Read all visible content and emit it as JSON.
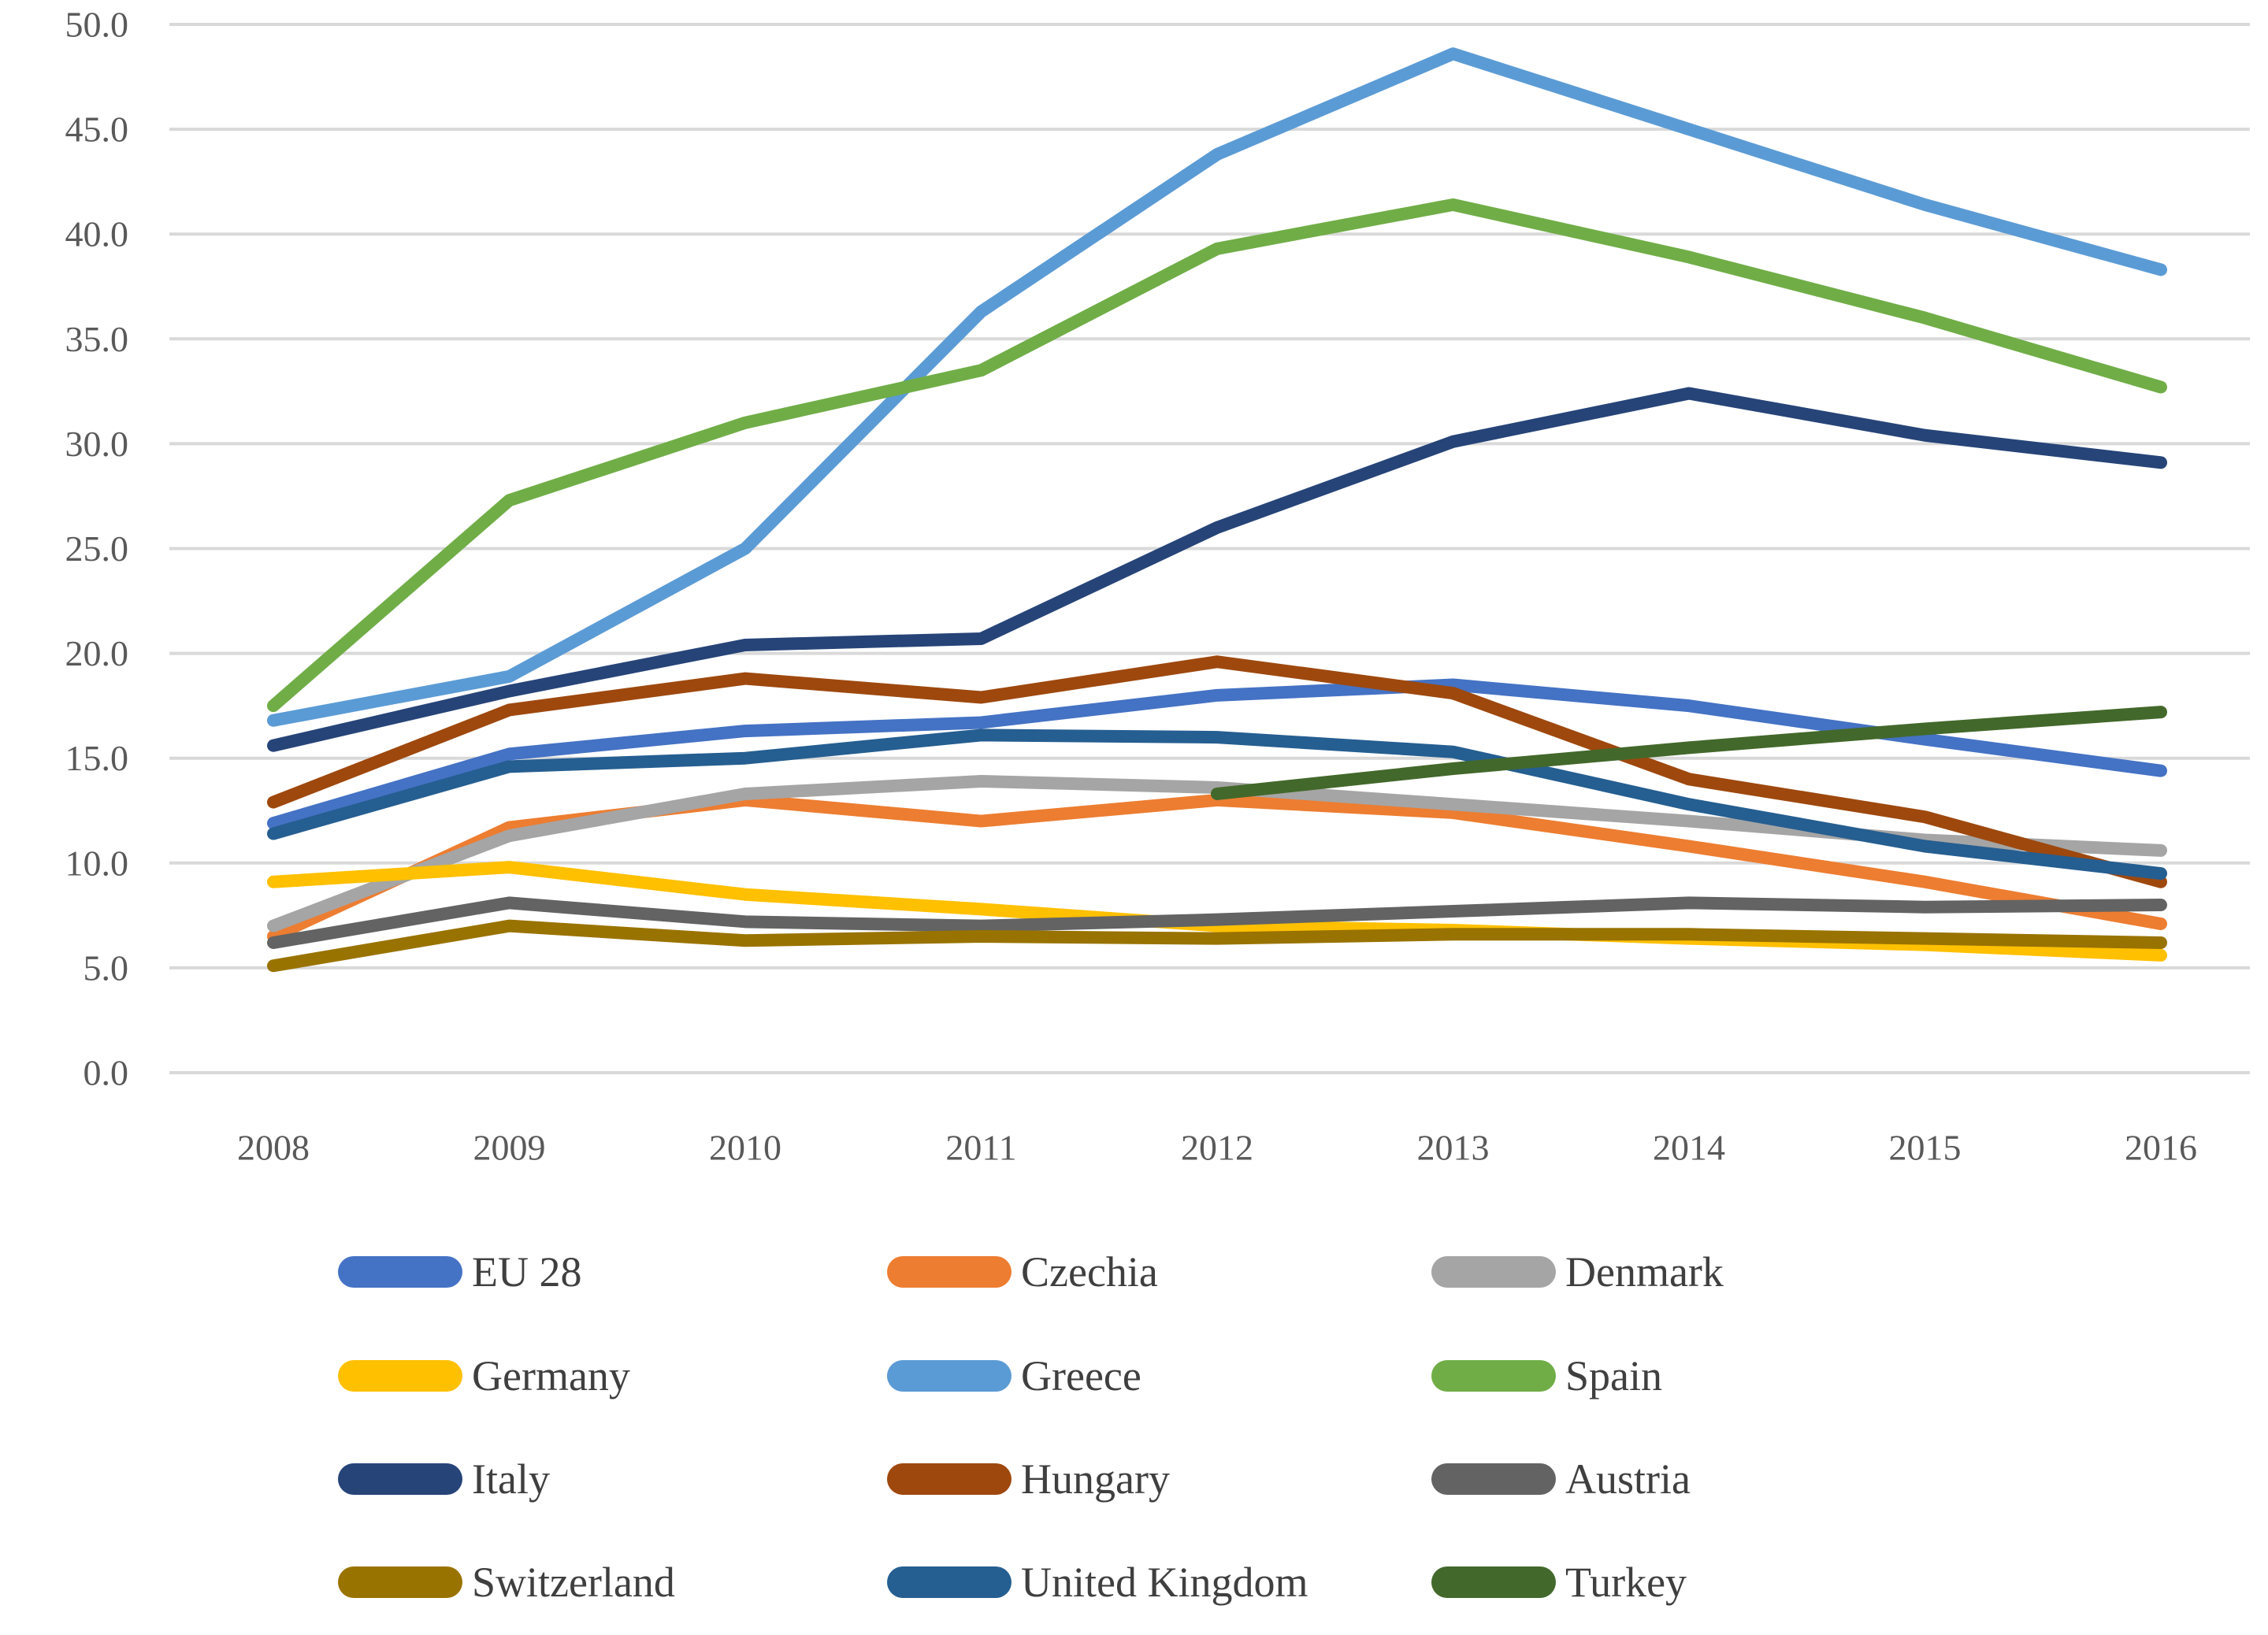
{
  "chart_data": {
    "type": "line",
    "title": "",
    "xlabel": "",
    "ylabel": "",
    "x": [
      "2008",
      "2009",
      "2010",
      "2011",
      "2012",
      "2013",
      "2014",
      "2015",
      "2016"
    ],
    "ylim": [
      0,
      50
    ],
    "ytick_step": 5,
    "ytick_labels": [
      "0.0",
      "5.0",
      "10.0",
      "15.0",
      "20.0",
      "25.0",
      "30.0",
      "35.0",
      "40.0",
      "45.0",
      "50.0"
    ],
    "grid": true,
    "legend_position": "bottom",
    "legend_columns": 3,
    "series": [
      {
        "name": "EU 28",
        "color": "#4472C4",
        "values": [
          11.9,
          15.2,
          16.3,
          16.7,
          18.0,
          18.5,
          17.5,
          15.9,
          14.4
        ]
      },
      {
        "name": "Czechia",
        "color": "#ED7D31",
        "values": [
          6.5,
          11.7,
          13.0,
          12.0,
          13.0,
          12.4,
          10.8,
          9.1,
          7.1
        ]
      },
      {
        "name": "Denmark",
        "color": "#A5A5A5",
        "values": [
          7.0,
          11.3,
          13.3,
          13.9,
          13.6,
          12.8,
          12.0,
          11.1,
          10.6
        ]
      },
      {
        "name": "Germany",
        "color": "#FFC000",
        "values": [
          9.1,
          9.8,
          8.5,
          7.8,
          7.0,
          6.8,
          6.4,
          6.1,
          5.6
        ]
      },
      {
        "name": "Greece",
        "color": "#5B9BD5",
        "values": [
          16.8,
          18.9,
          25.0,
          36.3,
          43.8,
          48.6,
          45.0,
          41.4,
          38.3
        ]
      },
      {
        "name": "Spain",
        "color": "#70AD47",
        "values": [
          17.5,
          27.3,
          31.0,
          33.5,
          39.3,
          41.4,
          38.9,
          36.0,
          32.7
        ]
      },
      {
        "name": "Italy",
        "color": "#264478",
        "values": [
          15.6,
          18.2,
          20.4,
          20.7,
          26.0,
          30.1,
          32.4,
          30.4,
          29.1
        ]
      },
      {
        "name": "Hungary",
        "color": "#9E480E",
        "values": [
          12.9,
          17.3,
          18.8,
          17.9,
          19.6,
          18.1,
          14.0,
          12.2,
          9.1
        ]
      },
      {
        "name": "Austria",
        "color": "#636363",
        "values": [
          6.2,
          8.1,
          7.2,
          7.0,
          7.3,
          7.7,
          8.1,
          7.9,
          8.0
        ]
      },
      {
        "name": "Switzerland",
        "color": "#997300",
        "values": [
          5.1,
          7.0,
          6.3,
          6.5,
          6.4,
          6.6,
          6.6,
          6.4,
          6.2
        ]
      },
      {
        "name": "United Kingdom",
        "color": "#255E91",
        "values": [
          11.4,
          14.6,
          15.0,
          16.1,
          16.0,
          15.3,
          12.8,
          10.8,
          9.5
        ]
      },
      {
        "name": "Turkey",
        "color": "#43682B",
        "values": [
          null,
          null,
          null,
          null,
          13.3,
          14.5,
          15.5,
          16.4,
          17.2
        ]
      }
    ]
  },
  "style": {
    "grid_color": "#D9D9D9",
    "tick_text_color": "#595959",
    "legend_text_color": "#3F3F3F",
    "background": "#FFFFFF"
  }
}
